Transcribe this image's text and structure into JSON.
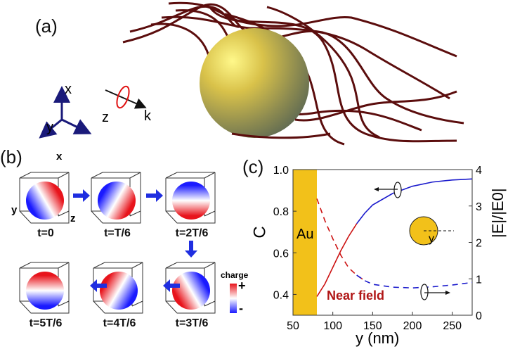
{
  "panel_a": {
    "label": "(a)",
    "axes": {
      "x": "x",
      "y": "y",
      "z": "z",
      "k": "k"
    }
  },
  "panel_b": {
    "label": "(b)",
    "axes": {
      "x": "x",
      "y": "y",
      "z": "z"
    },
    "frames": [
      {
        "label": "t=0",
        "red_angle": 0
      },
      {
        "label": "t=T/6",
        "red_angle": 60
      },
      {
        "label": "t=2T/6",
        "red_angle": 120
      },
      {
        "label": "t=3T/6",
        "red_angle": 180
      },
      {
        "label": "t=4T/6",
        "red_angle": 240
      },
      {
        "label": "t=5T/6",
        "red_angle": 300
      }
    ],
    "colorbar": {
      "title": "charge",
      "plus": "+",
      "minus": "-",
      "colors": [
        "#e8141c",
        "#ffffff",
        "#1a1aff"
      ]
    }
  },
  "chart_data": {
    "type": "line",
    "panel_label": "(c)",
    "xlabel": "y (nm)",
    "ylabel_left": "C",
    "ylabel_right": "|E|/|E0|",
    "xlim": [
      50,
      275
    ],
    "ylim_left": [
      0.3,
      1.0
    ],
    "ylim_right": [
      0,
      4
    ],
    "xticks": [
      "50",
      "100",
      "150",
      "200",
      "250"
    ],
    "yticks_left": [
      "0.4",
      "0.6",
      "0.8",
      "1.0"
    ],
    "yticks_right": [
      "0",
      "1",
      "2",
      "3",
      "4"
    ],
    "region": {
      "label": "Au",
      "x": [
        50,
        80
      ],
      "color": "#f2c11a"
    },
    "annotation": "Near field",
    "inset_label": "y",
    "series": [
      {
        "axis": "left",
        "style": "solid",
        "x": [
          80,
          90,
          100,
          110,
          120,
          130,
          140,
          150,
          175,
          200,
          225,
          250,
          275
        ],
        "y": [
          0.39,
          0.45,
          0.53,
          0.61,
          0.68,
          0.74,
          0.79,
          0.83,
          0.885,
          0.92,
          0.94,
          0.95,
          0.955
        ],
        "near_color": "#cc1111",
        "far_color": "#1a1acc",
        "split_x": 138
      },
      {
        "axis": "right",
        "style": "dashed",
        "x": [
          80,
          90,
          100,
          110,
          120,
          130,
          140,
          150,
          175,
          200,
          225,
          250,
          275
        ],
        "y": [
          3.2,
          2.6,
          2.1,
          1.65,
          1.3,
          1.1,
          0.95,
          0.85,
          0.77,
          0.75,
          0.78,
          0.83,
          0.9
        ],
        "near_color": "#cc1111",
        "far_color": "#1a1acc",
        "split_x": 140
      }
    ]
  }
}
